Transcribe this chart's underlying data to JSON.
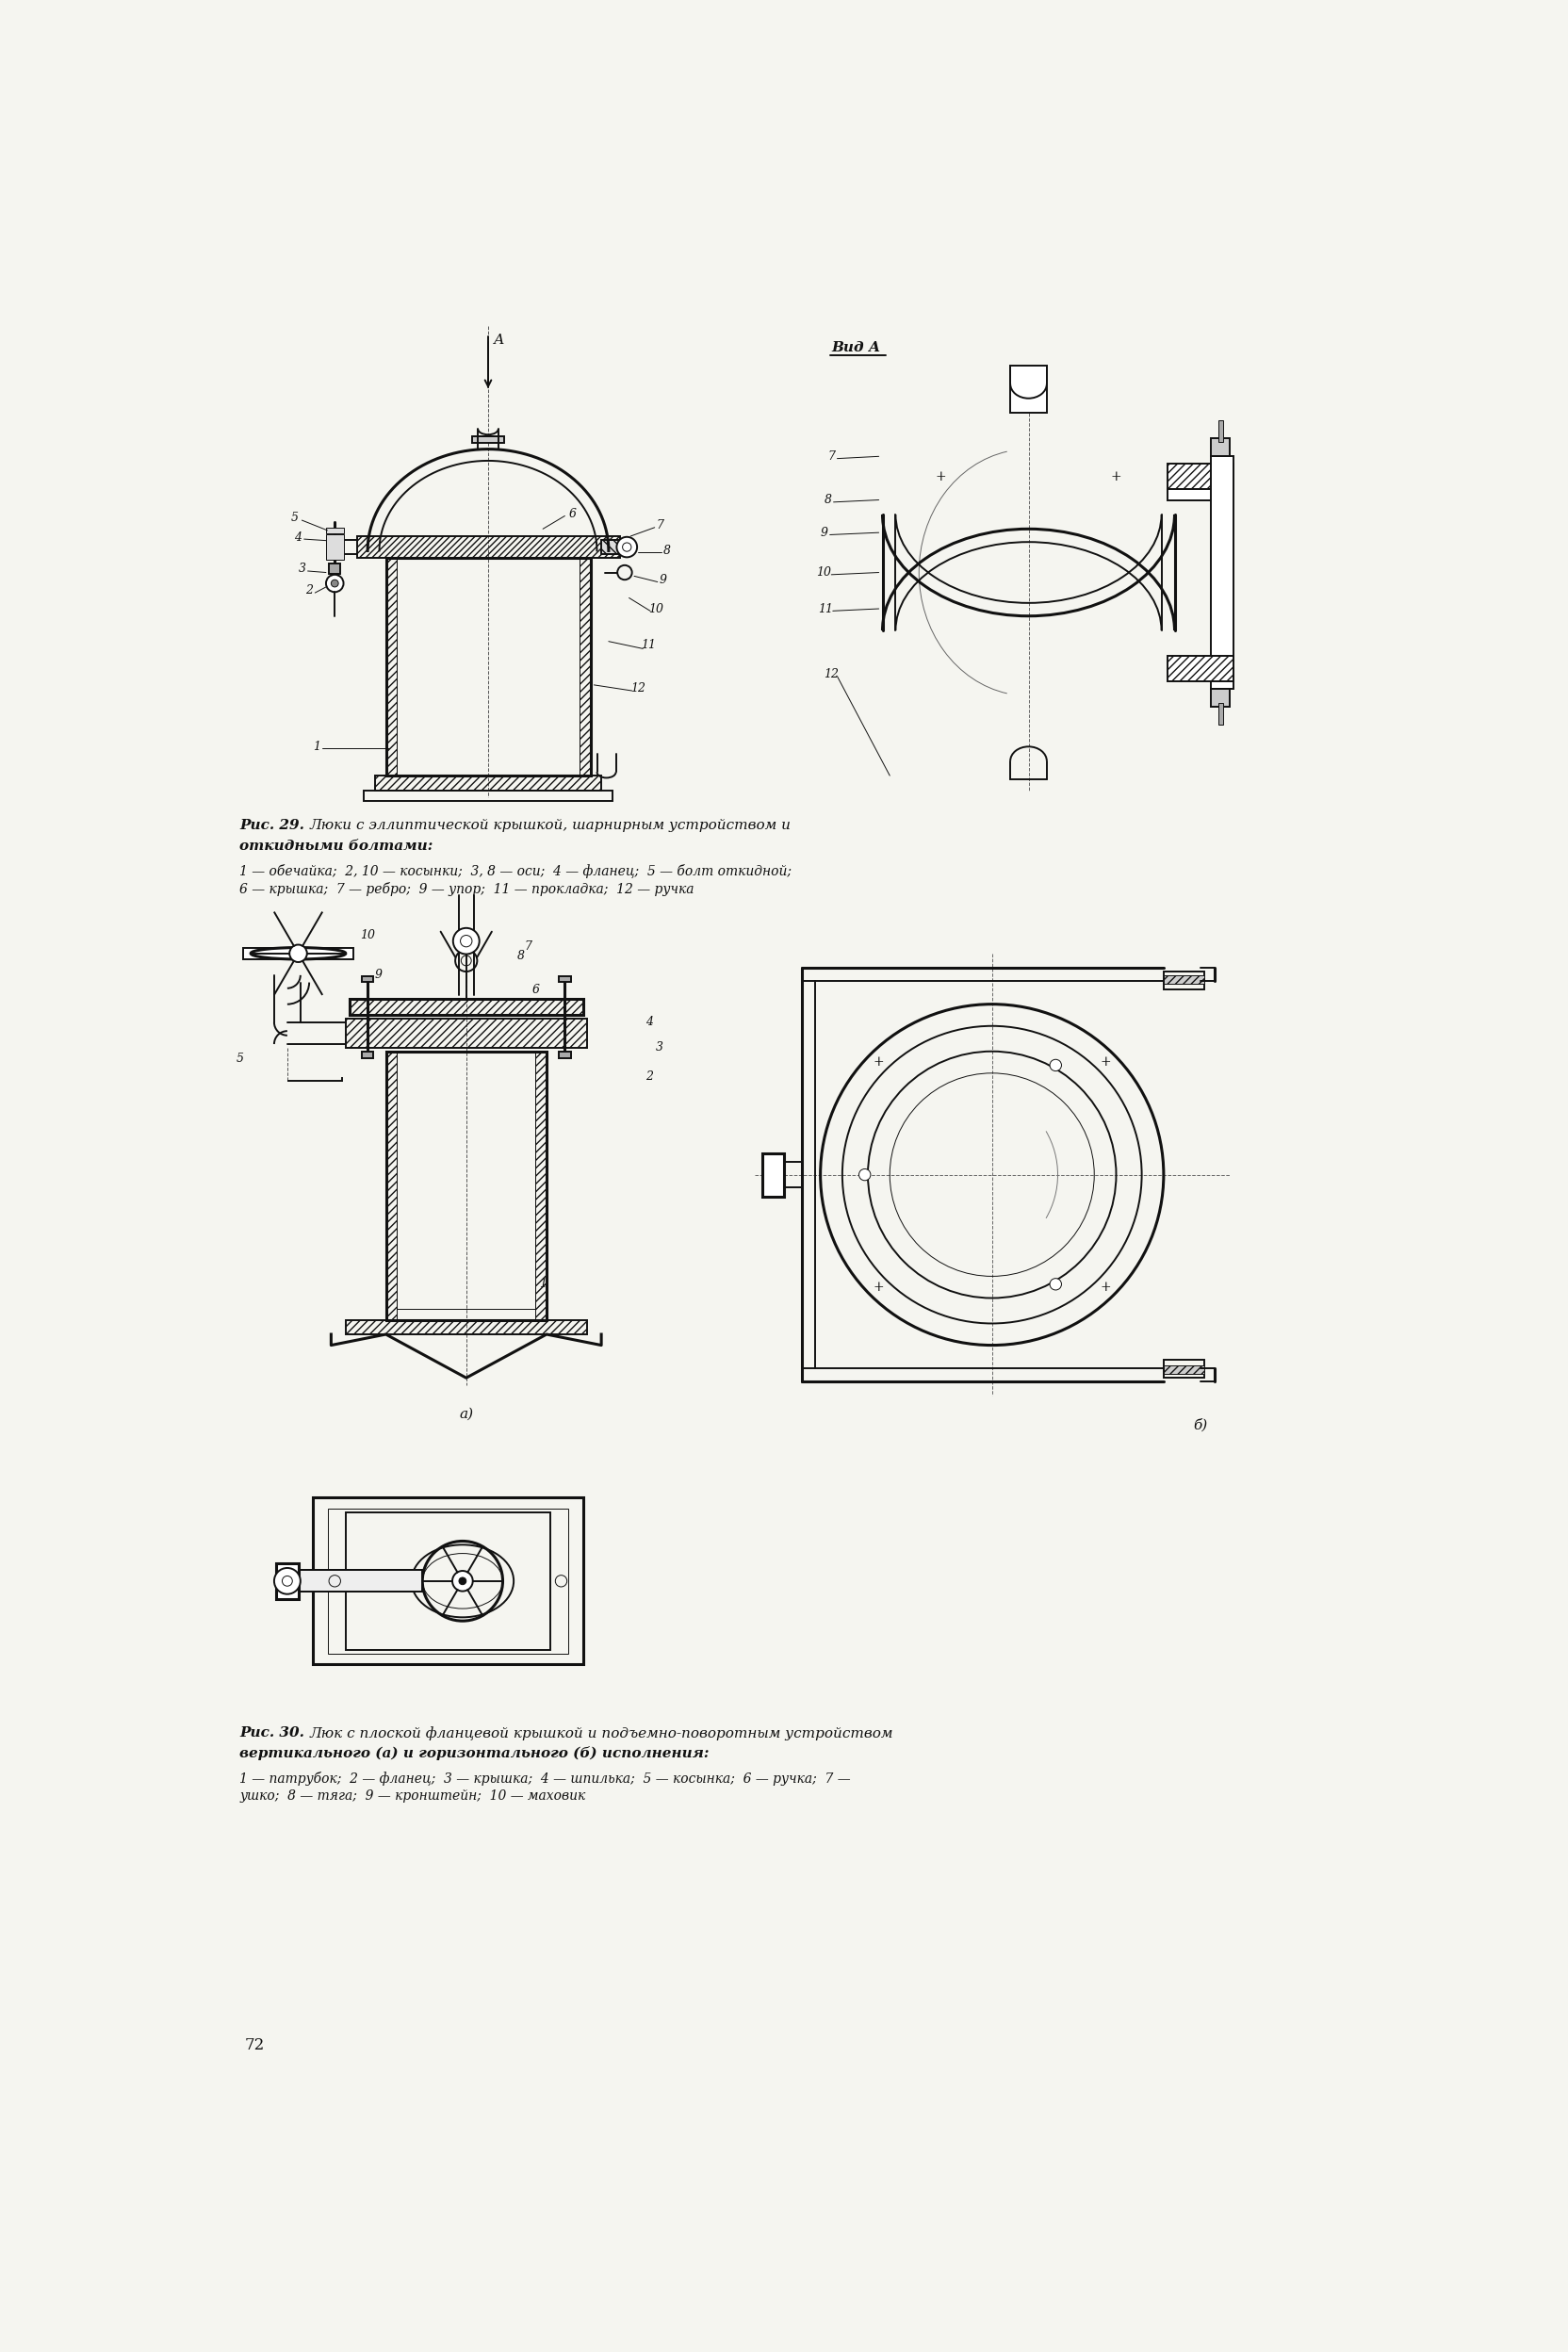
{
  "page_bg": "#f5f5f0",
  "fig_width": 16.64,
  "fig_height": 24.96,
  "caption1_line1": "Рис. 29. Люки с эллиптической крышкой, шарнирным устройством и",
  "caption1_line2": "откидными болтами:",
  "caption1_items1": "1 — обечайка;  2, 10 — косынки;  3, 8 — оси;  4 — фланец;  5 — болт откидной;",
  "caption1_items2": "6 — крышка;  7 — ребро;  9 — упор;  11 — прокладка;  12 — ручка",
  "caption2_line1": "Рис. 30. Люк с плоской фланцевой крышкой и подъемно-поворотным устройством",
  "caption2_line2": "вертикального (а) и горизонтального (б) исполнения:",
  "caption2_items1": "1 — патрубок;  2 — фланец;  3 — крышка;  4 — шпилька;  5 — косынка;  6 — ручка;  7 —",
  "caption2_items2": "ушко;  8 — тяга;  9 — кронштейн;  10 — маховик",
  "page_number": "72",
  "vid_a": "Вид А",
  "label_a": "а)",
  "label_b": "б)"
}
